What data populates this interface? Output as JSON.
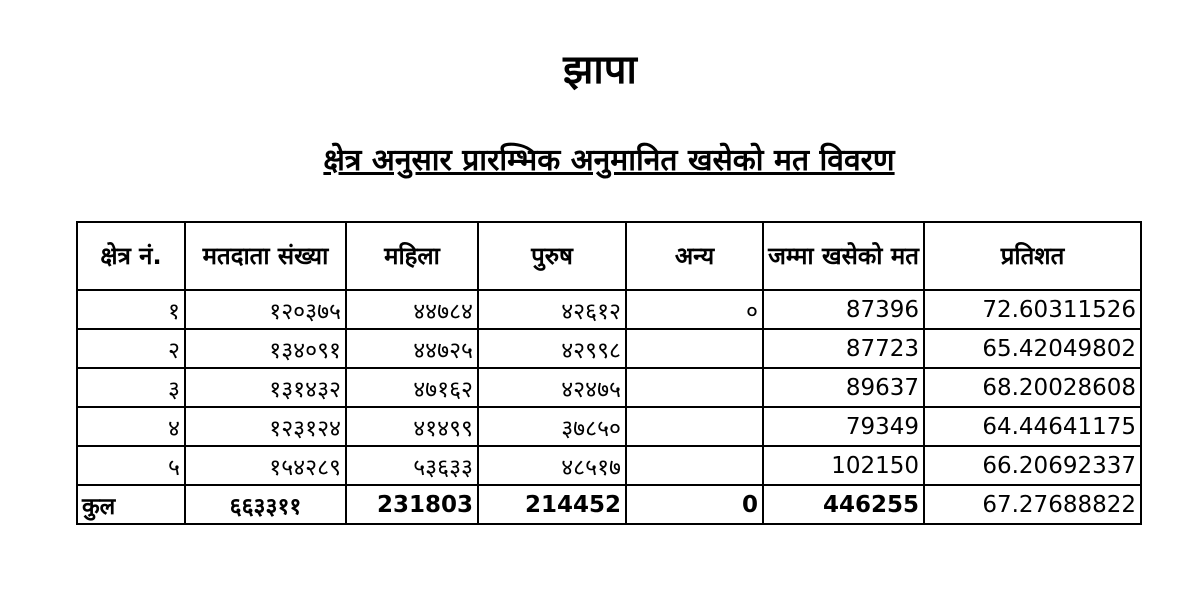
{
  "title": "झापा",
  "subtitle": "क्षेत्र अनुसार प्रारम्भिक अनुमानित खसेको मत विवरण",
  "table": {
    "headers": [
      "क्षेत्र नं.",
      "मतदाता संख्या",
      "महिला",
      "पुरुष",
      "अन्य",
      "जम्मा खसेको मत",
      "प्रतिशत"
    ],
    "rows": [
      [
        "१",
        "१२०३७५",
        "४४७८४",
        "४२६१२",
        "०",
        "87396",
        "72.60311526"
      ],
      [
        "२",
        "१३४०९१",
        "४४७२५",
        "४२९९८",
        "",
        "87723",
        "65.42049802"
      ],
      [
        "३",
        "१३१४३२",
        "४७१६२",
        "४२४७५",
        "",
        "89637",
        "68.20028608"
      ],
      [
        "४",
        "१२३१२४",
        "४१४९९",
        "३७८५०",
        "",
        "79349",
        "64.44641175"
      ],
      [
        "५",
        "१५४२८९",
        "५३६३३",
        "४८५१७",
        "",
        "102150",
        "66.20692337"
      ]
    ],
    "total": [
      "कुल",
      "६६३३११",
      "231803",
      "214452",
      "0",
      "446255",
      "67.27688822"
    ]
  }
}
